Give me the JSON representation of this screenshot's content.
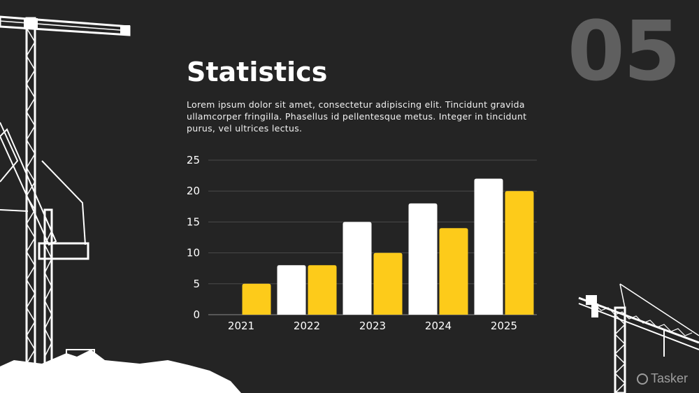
{
  "slide": {
    "number": "05",
    "title": "Statistics",
    "body": "Lorem ipsum dolor sit amet, consectetur adipiscing elit. Tincidunt gravida ullamcorper fringilla. Phasellus id pellentesque metus. Integer in tincidunt purus, vel ultrices lectus."
  },
  "watermark": {
    "text": "Tasker"
  },
  "colors": {
    "background": "#242424",
    "series_white": "#ffffff",
    "series_yellow": "#fdcb1a",
    "slide_number": "#5f5f5f"
  },
  "chart_data": {
    "type": "bar",
    "title": "",
    "xlabel": "",
    "ylabel": "",
    "categories": [
      "2021",
      "2022",
      "2023",
      "2024",
      "2025"
    ],
    "series": [
      {
        "values": [
          0,
          8,
          15,
          18,
          22
        ],
        "color": "#ffffff"
      },
      {
        "values": [
          5,
          8,
          10,
          14,
          20
        ],
        "color": "#fdcb1a"
      }
    ],
    "yticks": [
      "0",
      "5",
      "10",
      "15",
      "20",
      "25"
    ],
    "ylim": [
      0,
      25
    ],
    "grid": true,
    "legend": "none"
  }
}
